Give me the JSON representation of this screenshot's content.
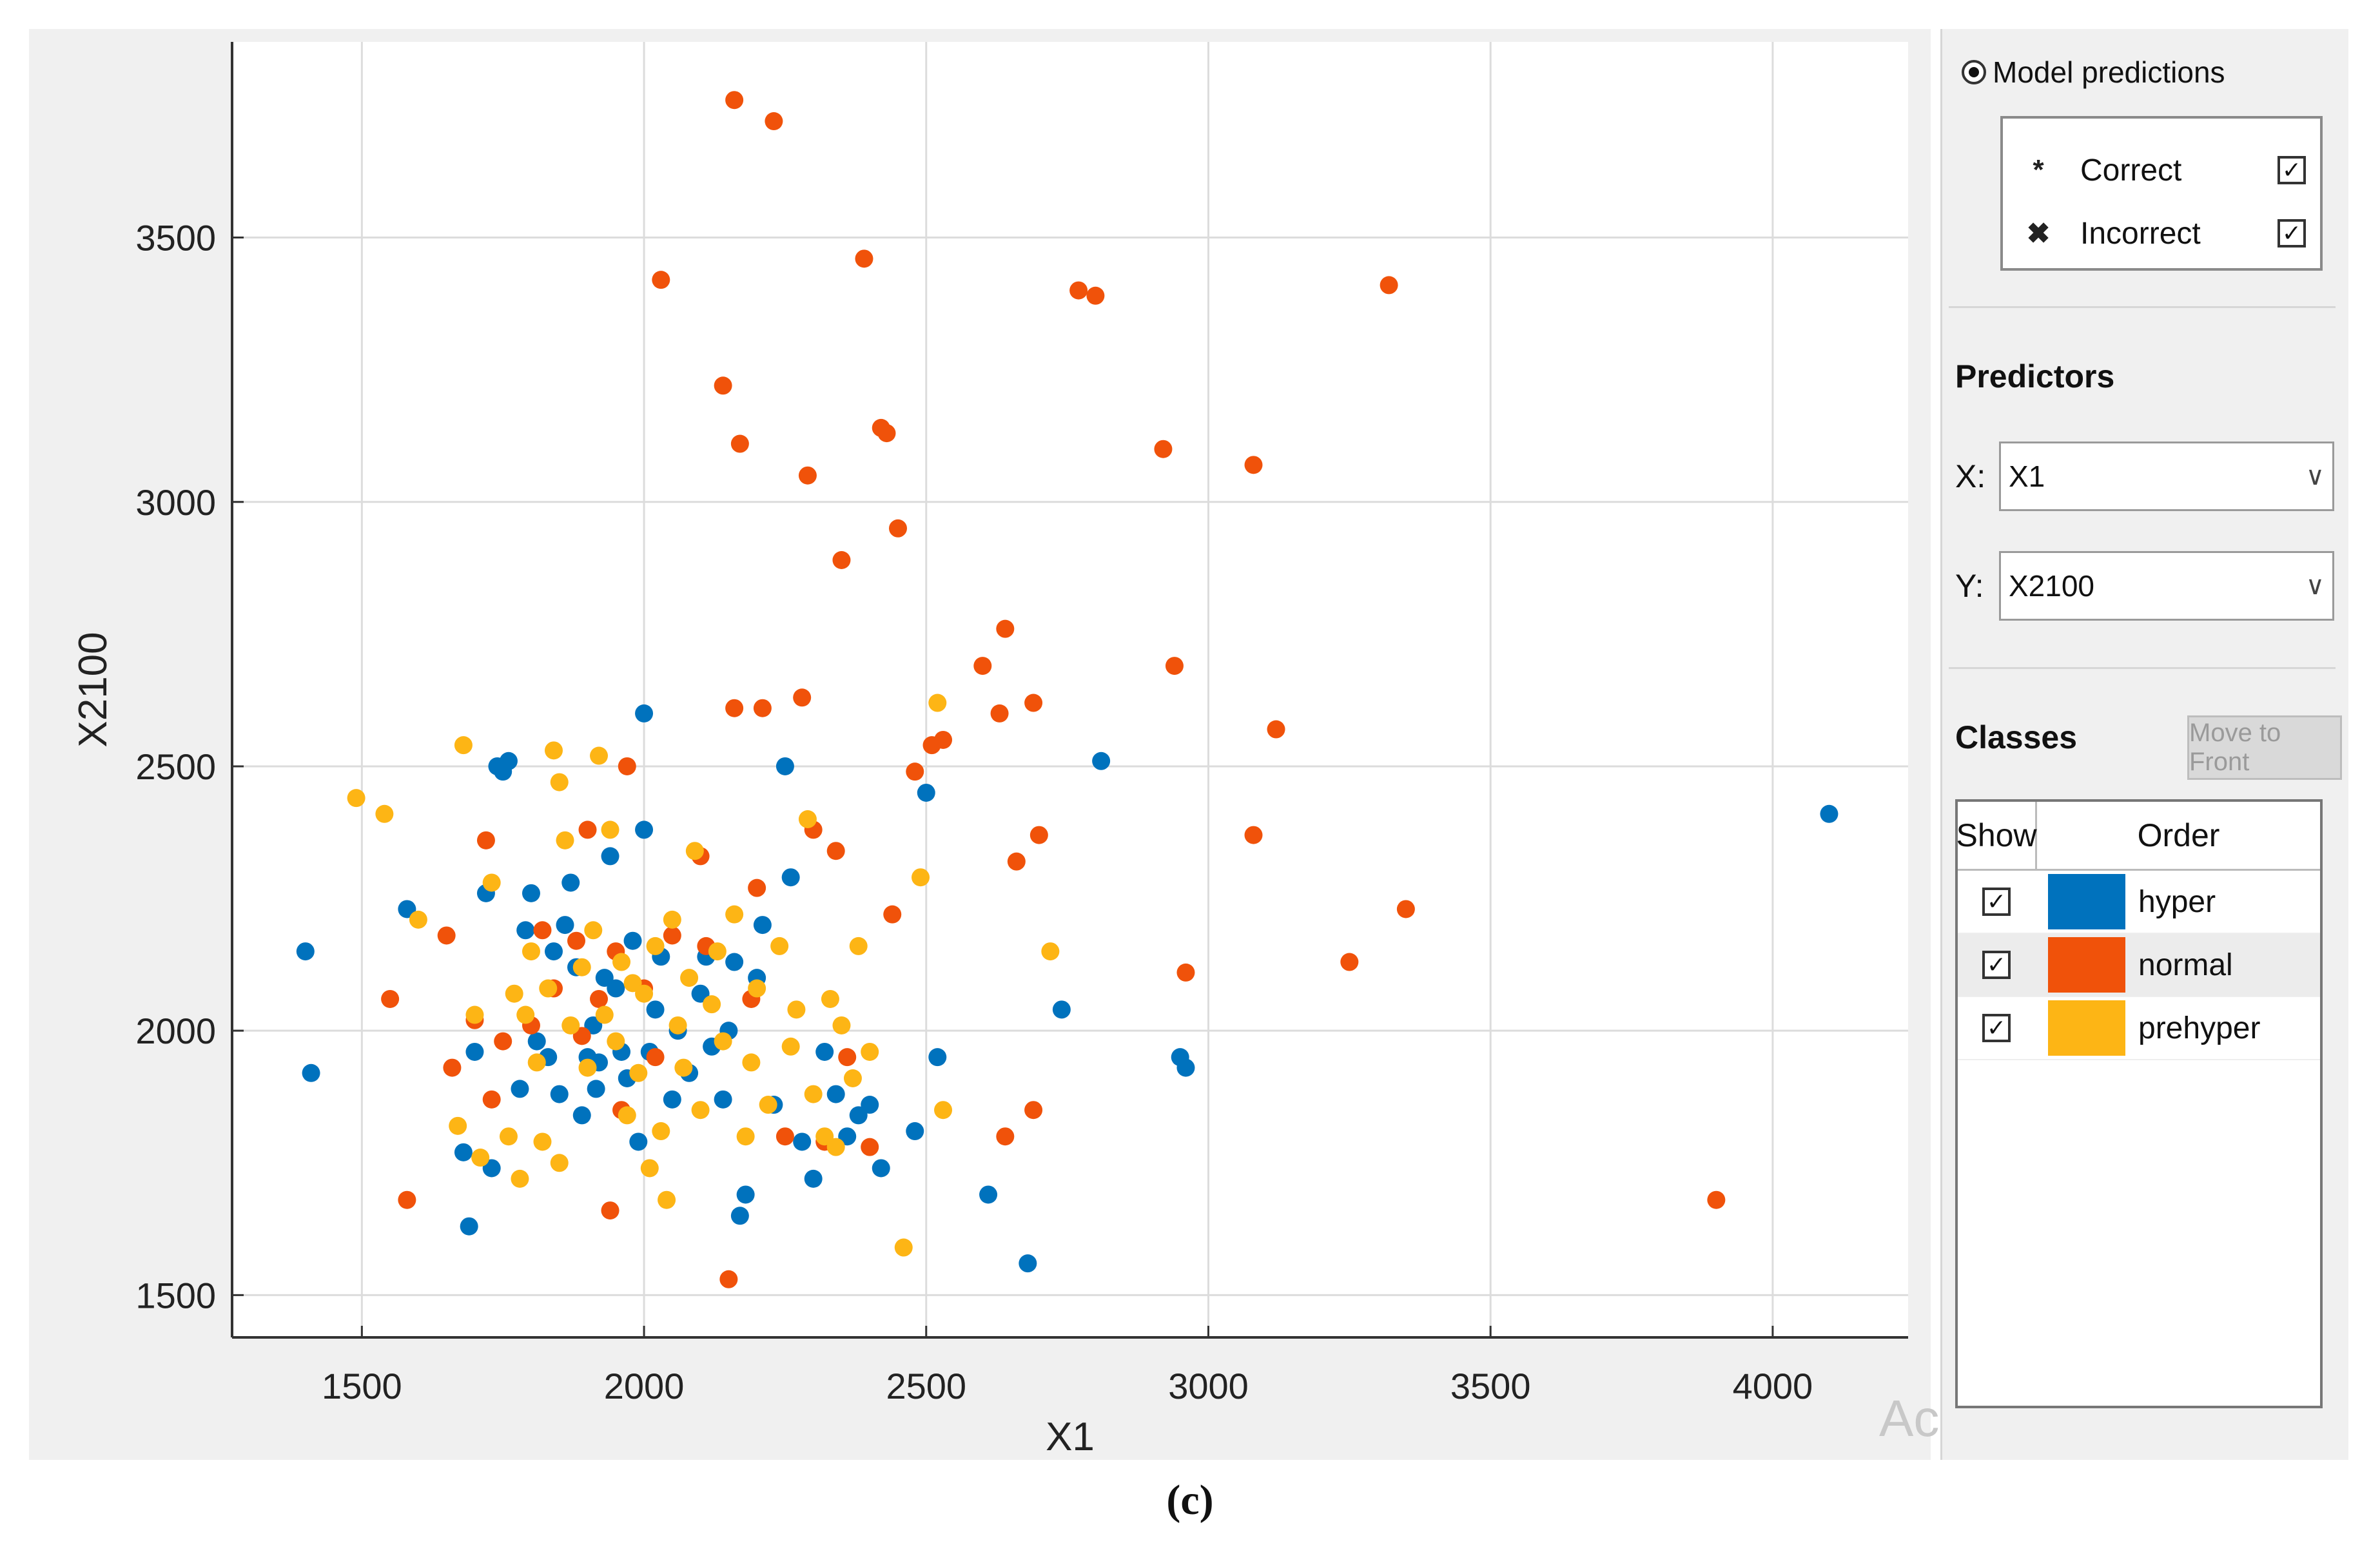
{
  "caption": "(c)",
  "watermark_text": "Ac",
  "panel": {
    "model_predictions_label": "Model predictions",
    "legend": [
      {
        "symbol": "*",
        "label": "Correct",
        "checked": true
      },
      {
        "symbol": "✖",
        "label": "Incorrect",
        "checked": true
      }
    ],
    "predictors_title": "Predictors",
    "x_key": "X:",
    "x_value": "X1",
    "y_key": "Y:",
    "y_value": "X2100",
    "classes_title": "Classes",
    "move_to_front_label": "Move to Front",
    "table_headers": {
      "show": "Show",
      "order": "Order"
    },
    "classes": [
      {
        "name": "hyper",
        "color": "#0072bd",
        "shown": true
      },
      {
        "name": "normal",
        "color": "#f0520a",
        "shown": true
      },
      {
        "name": "prehyper",
        "color": "#fdb515",
        "shown": true
      }
    ]
  },
  "chart_data": {
    "type": "scatter",
    "xlabel": "X1",
    "ylabel": "X2100",
    "xlim": [
      1270,
      4240
    ],
    "ylim": [
      1420,
      3870
    ],
    "xticks": [
      1500,
      2000,
      2500,
      3000,
      3500,
      4000
    ],
    "yticks": [
      1500,
      2000,
      2500,
      3000,
      3500
    ],
    "grid": true,
    "colors": {
      "hyper": "#0072bd",
      "normal": "#f0520a",
      "prehyper": "#fdb515"
    },
    "series": [
      {
        "name": "hyper",
        "points": [
          [
            1400,
            2150
          ],
          [
            1410,
            1920
          ],
          [
            1580,
            2230
          ],
          [
            1680,
            1770
          ],
          [
            1690,
            1630
          ],
          [
            1700,
            1960
          ],
          [
            1720,
            2260
          ],
          [
            1730,
            1740
          ],
          [
            1740,
            2500
          ],
          [
            1750,
            2490
          ],
          [
            1760,
            2510
          ],
          [
            1780,
            1890
          ],
          [
            1790,
            2190
          ],
          [
            1800,
            2260
          ],
          [
            1810,
            1980
          ],
          [
            1830,
            1950
          ],
          [
            1840,
            2150
          ],
          [
            1850,
            1880
          ],
          [
            1860,
            2200
          ],
          [
            1870,
            2280
          ],
          [
            1880,
            2120
          ],
          [
            1890,
            1840
          ],
          [
            1900,
            1950
          ],
          [
            1910,
            2010
          ],
          [
            1915,
            1890
          ],
          [
            1920,
            1940
          ],
          [
            1930,
            2100
          ],
          [
            1940,
            2330
          ],
          [
            1950,
            2080
          ],
          [
            1960,
            1960
          ],
          [
            1970,
            1910
          ],
          [
            1980,
            2170
          ],
          [
            1990,
            1790
          ],
          [
            2000,
            2380
          ],
          [
            2000,
            2600
          ],
          [
            2010,
            1960
          ],
          [
            2020,
            2040
          ],
          [
            2030,
            2140
          ],
          [
            2050,
            1870
          ],
          [
            2060,
            2000
          ],
          [
            2080,
            1920
          ],
          [
            2100,
            2070
          ],
          [
            2110,
            2140
          ],
          [
            2120,
            1970
          ],
          [
            2140,
            1870
          ],
          [
            2150,
            2000
          ],
          [
            2160,
            2130
          ],
          [
            2170,
            1650
          ],
          [
            2180,
            1690
          ],
          [
            2200,
            2100
          ],
          [
            2210,
            2200
          ],
          [
            2230,
            1860
          ],
          [
            2250,
            2500
          ],
          [
            2260,
            2290
          ],
          [
            2280,
            1790
          ],
          [
            2300,
            1720
          ],
          [
            2320,
            1960
          ],
          [
            2340,
            1880
          ],
          [
            2360,
            1800
          ],
          [
            2380,
            1840
          ],
          [
            2400,
            1860
          ],
          [
            2420,
            1740
          ],
          [
            2480,
            1810
          ],
          [
            2500,
            2450
          ],
          [
            2520,
            1950
          ],
          [
            2610,
            1690
          ],
          [
            2680,
            1560
          ],
          [
            2740,
            2040
          ],
          [
            2810,
            2510
          ],
          [
            2950,
            1950
          ],
          [
            2960,
            1930
          ],
          [
            4100,
            2410
          ]
        ]
      },
      {
        "name": "normal",
        "points": [
          [
            1550,
            2060
          ],
          [
            1580,
            1680
          ],
          [
            1650,
            2180
          ],
          [
            1660,
            1930
          ],
          [
            1700,
            2020
          ],
          [
            1720,
            2360
          ],
          [
            1730,
            1870
          ],
          [
            1750,
            1980
          ],
          [
            1800,
            2010
          ],
          [
            1820,
            2190
          ],
          [
            1840,
            2080
          ],
          [
            1880,
            2170
          ],
          [
            1890,
            1990
          ],
          [
            1900,
            2380
          ],
          [
            1920,
            2060
          ],
          [
            1940,
            1660
          ],
          [
            1950,
            2150
          ],
          [
            1960,
            1850
          ],
          [
            1970,
            2500
          ],
          [
            2000,
            2080
          ],
          [
            2020,
            1950
          ],
          [
            2030,
            3420
          ],
          [
            2050,
            2180
          ],
          [
            2100,
            2330
          ],
          [
            2110,
            2160
          ],
          [
            2140,
            3220
          ],
          [
            2150,
            1530
          ],
          [
            2160,
            2610
          ],
          [
            2160,
            3760
          ],
          [
            2170,
            3110
          ],
          [
            2190,
            2060
          ],
          [
            2200,
            2270
          ],
          [
            2210,
            2610
          ],
          [
            2230,
            3720
          ],
          [
            2250,
            1800
          ],
          [
            2280,
            2630
          ],
          [
            2290,
            3050
          ],
          [
            2300,
            2380
          ],
          [
            2320,
            1790
          ],
          [
            2340,
            2340
          ],
          [
            2350,
            2890
          ],
          [
            2360,
            1950
          ],
          [
            2390,
            3460
          ],
          [
            2400,
            1780
          ],
          [
            2420,
            3140
          ],
          [
            2430,
            3130
          ],
          [
            2440,
            2220
          ],
          [
            2450,
            2950
          ],
          [
            2480,
            2490
          ],
          [
            2510,
            2540
          ],
          [
            2530,
            2550
          ],
          [
            2600,
            2690
          ],
          [
            2630,
            2600
          ],
          [
            2640,
            1800
          ],
          [
            2640,
            2760
          ],
          [
            2660,
            2320
          ],
          [
            2690,
            1850
          ],
          [
            2690,
            2620
          ],
          [
            2700,
            2370
          ],
          [
            2770,
            3400
          ],
          [
            2800,
            3390
          ],
          [
            2920,
            3100
          ],
          [
            2940,
            2690
          ],
          [
            2960,
            2110
          ],
          [
            3080,
            2370
          ],
          [
            3080,
            3070
          ],
          [
            3120,
            2570
          ],
          [
            3250,
            2130
          ],
          [
            3320,
            3410
          ],
          [
            3350,
            2230
          ],
          [
            3900,
            1680
          ]
        ]
      },
      {
        "name": "prehyper",
        "points": [
          [
            1490,
            2440
          ],
          [
            1540,
            2410
          ],
          [
            1600,
            2210
          ],
          [
            1670,
            1820
          ],
          [
            1680,
            2540
          ],
          [
            1700,
            2030
          ],
          [
            1710,
            1760
          ],
          [
            1730,
            2280
          ],
          [
            1760,
            1800
          ],
          [
            1770,
            2070
          ],
          [
            1780,
            1720
          ],
          [
            1790,
            2030
          ],
          [
            1800,
            2150
          ],
          [
            1810,
            1940
          ],
          [
            1820,
            1790
          ],
          [
            1830,
            2080
          ],
          [
            1840,
            2530
          ],
          [
            1850,
            2470
          ],
          [
            1850,
            1750
          ],
          [
            1860,
            2360
          ],
          [
            1870,
            2010
          ],
          [
            1890,
            2120
          ],
          [
            1900,
            1930
          ],
          [
            1910,
            2190
          ],
          [
            1920,
            2520
          ],
          [
            1930,
            2030
          ],
          [
            1940,
            2380
          ],
          [
            1950,
            1980
          ],
          [
            1960,
            2130
          ],
          [
            1970,
            1840
          ],
          [
            1980,
            2090
          ],
          [
            1990,
            1920
          ],
          [
            2000,
            2070
          ],
          [
            2010,
            1740
          ],
          [
            2020,
            2160
          ],
          [
            2030,
            1810
          ],
          [
            2040,
            1680
          ],
          [
            2050,
            2210
          ],
          [
            2060,
            2010
          ],
          [
            2070,
            1930
          ],
          [
            2080,
            2100
          ],
          [
            2090,
            2340
          ],
          [
            2100,
            1850
          ],
          [
            2120,
            2050
          ],
          [
            2130,
            2150
          ],
          [
            2140,
            1980
          ],
          [
            2160,
            2220
          ],
          [
            2180,
            1800
          ],
          [
            2190,
            1940
          ],
          [
            2200,
            2080
          ],
          [
            2220,
            1860
          ],
          [
            2240,
            2160
          ],
          [
            2260,
            1970
          ],
          [
            2270,
            2040
          ],
          [
            2290,
            2400
          ],
          [
            2300,
            1880
          ],
          [
            2320,
            1800
          ],
          [
            2330,
            2060
          ],
          [
            2340,
            1780
          ],
          [
            2350,
            2010
          ],
          [
            2370,
            1910
          ],
          [
            2380,
            2160
          ],
          [
            2400,
            1960
          ],
          [
            2460,
            1590
          ],
          [
            2490,
            2290
          ],
          [
            2520,
            2620
          ],
          [
            2530,
            1850
          ],
          [
            2720,
            2150
          ]
        ]
      }
    ]
  }
}
